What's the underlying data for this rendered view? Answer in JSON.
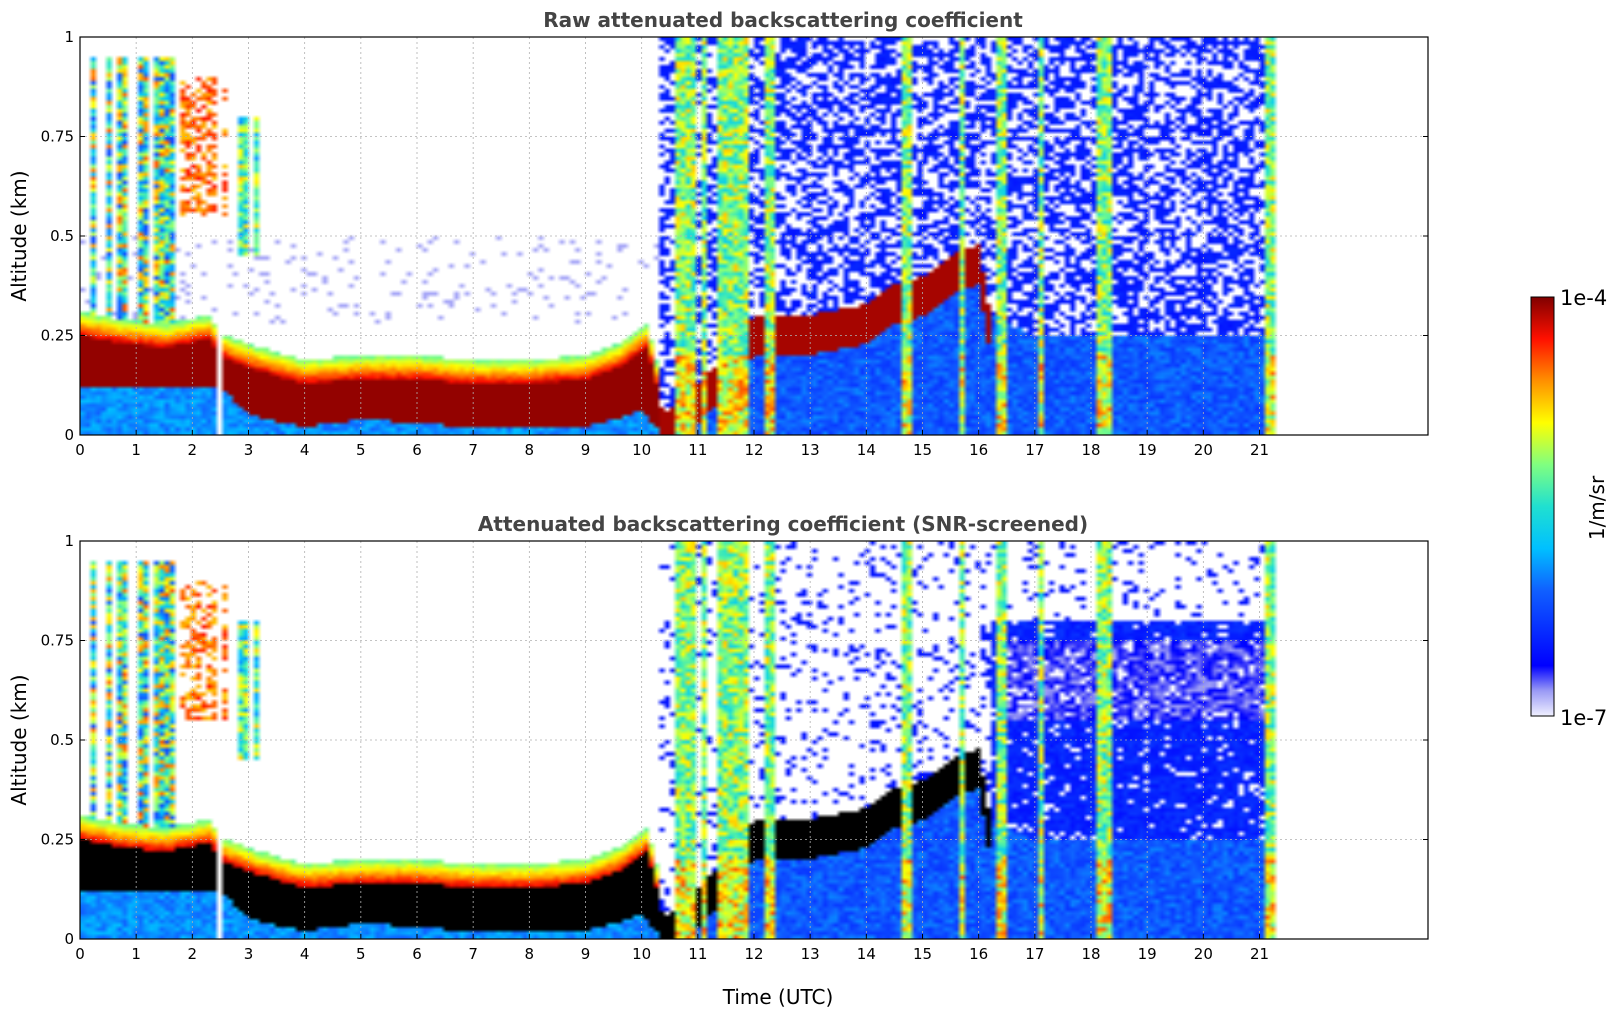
{
  "chart_data": [
    {
      "type": "heatmap",
      "title": "Raw attenuated backscattering coefficient",
      "xlabel": "",
      "ylabel": "Altitude (km)",
      "xlim": [
        0,
        24
      ],
      "ylim": [
        0,
        1
      ],
      "x_ticks": [
        "0",
        "1",
        "2",
        "3",
        "4",
        "5",
        "6",
        "7",
        "8",
        "9",
        "10",
        "11",
        "12",
        "13",
        "14",
        "15",
        "16",
        "17",
        "18",
        "19",
        "20",
        "21"
      ],
      "y_ticks": [
        "0",
        "0.25",
        "0.5",
        "0.75",
        "1"
      ],
      "grid": true,
      "data_end_hour": 21.3,
      "layer_top_km": [
        {
          "x": 0,
          "y": 0.25
        },
        {
          "x": 1,
          "y": 0.22
        },
        {
          "x": 2,
          "y": 0.24
        },
        {
          "x": 2.5,
          "y": 0.2
        },
        {
          "x": 3,
          "y": 0.15
        },
        {
          "x": 4,
          "y": 0.13
        },
        {
          "x": 5,
          "y": 0.14
        },
        {
          "x": 6,
          "y": 0.14
        },
        {
          "x": 7,
          "y": 0.13
        },
        {
          "x": 8,
          "y": 0.13
        },
        {
          "x": 9,
          "y": 0.14
        },
        {
          "x": 10,
          "y": 0.22
        },
        {
          "x": 10.3,
          "y": 0.0
        }
      ]
    },
    {
      "type": "heatmap",
      "title": "Attenuated backscattering coefficient (SNR-screened)",
      "xlabel": "Time (UTC)",
      "ylabel": "Altitude (km)",
      "xlim": [
        0,
        24
      ],
      "ylim": [
        0,
        1
      ],
      "x_ticks": [
        "0",
        "1",
        "2",
        "3",
        "4",
        "5",
        "6",
        "7",
        "8",
        "9",
        "10",
        "11",
        "12",
        "13",
        "14",
        "15",
        "16",
        "17",
        "18",
        "19",
        "20",
        "21"
      ],
      "y_ticks": [
        "0",
        "0.25",
        "0.5",
        "0.75",
        "1"
      ],
      "grid": true,
      "data_end_hour": 21.3
    }
  ],
  "colorbar": {
    "label": "1/m/sr",
    "max_label": "1e-4",
    "min_label": "1e-7",
    "scale": "log",
    "colormap": "jet"
  }
}
